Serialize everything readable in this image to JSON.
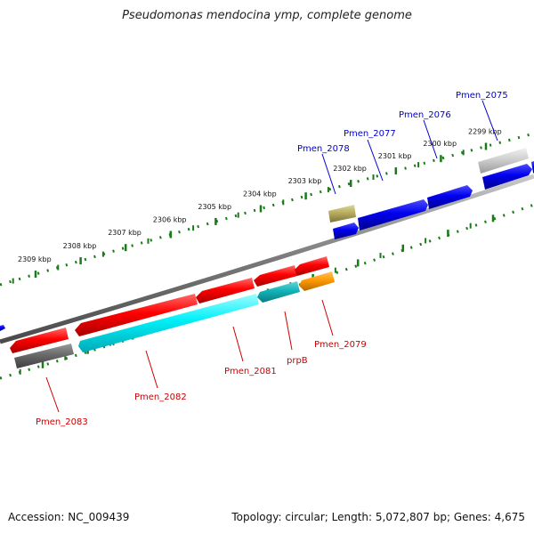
{
  "title": "Pseudomonas mendocina ymp, complete genome",
  "footer": {
    "accession_label": "Accession:",
    "accession": "NC_009439",
    "topology": "Topology: circular",
    "length": "Length: 5,072,807 bp",
    "genes": "Genes: 4,675"
  },
  "colors": {
    "forward_label": "#0000cc",
    "reverse_label": "#cc0000",
    "backbone": "#808080",
    "tick": "#1a7a1a"
  },
  "scale_ticks": [
    {
      "label": "2299 kbp",
      "pos": 2299
    },
    {
      "label": "2300 kbp",
      "pos": 2300
    },
    {
      "label": "2301 kbp",
      "pos": 2301
    },
    {
      "label": "2302 kbp",
      "pos": 2302
    },
    {
      "label": "2303 kbp",
      "pos": 2303
    },
    {
      "label": "2304 kbp",
      "pos": 2304
    },
    {
      "label": "2305 kbp",
      "pos": 2305
    },
    {
      "label": "2306 kbp",
      "pos": 2306
    },
    {
      "label": "2307 kbp",
      "pos": 2307
    },
    {
      "label": "2308 kbp",
      "pos": 2308
    },
    {
      "label": "2309 kbp",
      "pos": 2309
    }
  ],
  "forward_labels": [
    {
      "name": "Pmen_2075",
      "pos": 2298.6
    },
    {
      "name": "Pmen_2076",
      "pos": 2299.8
    },
    {
      "name": "Pmen_2077",
      "pos": 2300.9
    },
    {
      "name": "Pmen_2078",
      "pos": 2302.1
    }
  ],
  "reverse_labels": [
    {
      "name": "Pmen_2079",
      "pos": 2302.4
    },
    {
      "name": "prpB",
      "pos": 2303.0
    },
    {
      "name": "Pmen_2081",
      "pos": 2304.6
    },
    {
      "name": "Pmen_2082",
      "pos": 2306.8
    },
    {
      "name": "Pmen_2083",
      "pos": 2309.3
    }
  ]
}
